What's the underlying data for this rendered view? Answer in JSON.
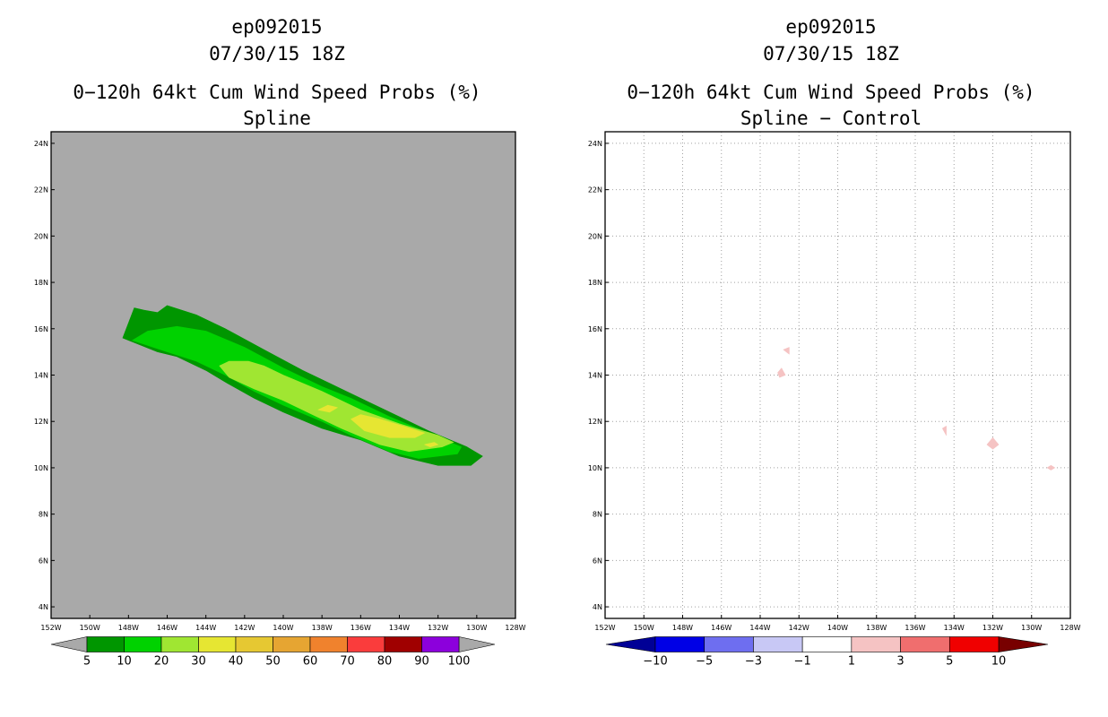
{
  "colors": {
    "map_background_left": "#a9a9a9",
    "map_background_right": "#ffffff",
    "grid": "#a0a0a0"
  },
  "chart_data": [
    {
      "type": "heatmap",
      "title_lines": [
        "ep092015",
        "07/30/15 18Z",
        "0−120h 64kt Cum Wind Speed Probs (%)",
        "Spline"
      ],
      "x_ticks": [
        "152W",
        "150W",
        "148W",
        "146W",
        "144W",
        "142W",
        "140W",
        "138W",
        "136W",
        "134W",
        "132W",
        "130W",
        "128W"
      ],
      "y_ticks": [
        "24N",
        "22N",
        "20N",
        "18N",
        "16N",
        "14N",
        "12N",
        "10N",
        "8N",
        "6N",
        "4N"
      ],
      "xlim": [
        -152,
        -128
      ],
      "ylim": [
        3.5,
        24.5
      ],
      "grid": false,
      "colorbar": {
        "labels": [
          "5",
          "10",
          "20",
          "30",
          "40",
          "50",
          "60",
          "70",
          "80",
          "90",
          "100"
        ],
        "colors": [
          "#009600",
          "#00d200",
          "#a0e632",
          "#e6e632",
          "#e6c832",
          "#e6a532",
          "#f0822d",
          "#fa3c3c",
          "#a00000",
          "#8c00dc"
        ],
        "end_colors": [
          "#a9a9a9",
          "#a9a9a9"
        ]
      },
      "contours": [
        {
          "level": "5-10",
          "color": "#009600",
          "points": [
            [
              -148.3,
              15.6
            ],
            [
              -147.7,
              16.9
            ],
            [
              -147.2,
              16.8
            ],
            [
              -146.5,
              16.7
            ],
            [
              -146.0,
              17.0
            ],
            [
              -144.5,
              16.6
            ],
            [
              -143.0,
              16.0
            ],
            [
              -141.0,
              15.1
            ],
            [
              -139.0,
              14.2
            ],
            [
              -137.5,
              13.6
            ],
            [
              -135.5,
              12.8
            ],
            [
              -134.0,
              12.2
            ],
            [
              -132.5,
              11.6
            ],
            [
              -130.5,
              10.9
            ],
            [
              -129.7,
              10.5
            ],
            [
              -130.3,
              10.1
            ],
            [
              -132.0,
              10.1
            ],
            [
              -134.0,
              10.5
            ],
            [
              -136.0,
              11.2
            ],
            [
              -138.0,
              11.7
            ],
            [
              -140.0,
              12.4
            ],
            [
              -141.5,
              13.0
            ],
            [
              -143.0,
              13.7
            ],
            [
              -144.0,
              14.2
            ],
            [
              -145.5,
              14.8
            ],
            [
              -146.5,
              15.0
            ]
          ]
        },
        {
          "level": "10-20",
          "color": "#00d200",
          "points": [
            [
              -147.8,
              15.5
            ],
            [
              -147.0,
              15.9
            ],
            [
              -145.5,
              16.1
            ],
            [
              -144.0,
              15.9
            ],
            [
              -142.0,
              15.2
            ],
            [
              -140.0,
              14.3
            ],
            [
              -138.0,
              13.5
            ],
            [
              -136.5,
              13.0
            ],
            [
              -134.5,
              12.2
            ],
            [
              -132.5,
              11.5
            ],
            [
              -130.8,
              10.9
            ],
            [
              -131.0,
              10.6
            ],
            [
              -133.0,
              10.4
            ],
            [
              -134.5,
              10.7
            ],
            [
              -136.5,
              11.4
            ],
            [
              -138.0,
              12.0
            ],
            [
              -140.0,
              12.7
            ],
            [
              -141.5,
              13.3
            ],
            [
              -143.0,
              14.0
            ],
            [
              -144.5,
              14.6
            ],
            [
              -146.0,
              15.0
            ]
          ]
        },
        {
          "level": "20-30",
          "color": "#a0e632",
          "points": [
            [
              -143.3,
              14.4
            ],
            [
              -142.8,
              14.6
            ],
            [
              -141.8,
              14.6
            ],
            [
              -141.0,
              14.4
            ],
            [
              -140.0,
              14.0
            ],
            [
              -138.0,
              13.3
            ],
            [
              -136.0,
              12.5
            ],
            [
              -134.0,
              11.9
            ],
            [
              -132.0,
              11.4
            ],
            [
              -131.2,
              11.1
            ],
            [
              -131.8,
              10.9
            ],
            [
              -133.5,
              10.7
            ],
            [
              -135.0,
              11.0
            ],
            [
              -137.0,
              11.7
            ],
            [
              -138.5,
              12.3
            ],
            [
              -140.0,
              12.9
            ],
            [
              -141.5,
              13.4
            ],
            [
              -142.8,
              13.9
            ]
          ]
        },
        {
          "level": "30-40",
          "color": "#e6e632",
          "points": [
            [
              -136.5,
              12.1
            ],
            [
              -136.0,
              12.3
            ],
            [
              -135.0,
              12.1
            ],
            [
              -133.8,
              11.8
            ],
            [
              -132.7,
              11.5
            ],
            [
              -133.2,
              11.3
            ],
            [
              -134.5,
              11.3
            ],
            [
              -135.8,
              11.6
            ]
          ]
        },
        {
          "level": "30-40",
          "color": "#e6e632",
          "points": [
            [
              -138.2,
              12.5
            ],
            [
              -137.7,
              12.7
            ],
            [
              -137.2,
              12.6
            ],
            [
              -137.6,
              12.4
            ]
          ]
        },
        {
          "level": "30-40",
          "color": "#e6e632",
          "points": [
            [
              -132.7,
              11.0
            ],
            [
              -132.2,
              11.1
            ],
            [
              -132.0,
              11.0
            ],
            [
              -132.4,
              10.9
            ]
          ]
        }
      ]
    },
    {
      "type": "heatmap",
      "title_lines": [
        "ep092015",
        "07/30/15 18Z",
        "0−120h 64kt Cum Wind Speed Probs (%)",
        "Spline − Control"
      ],
      "x_ticks": [
        "152W",
        "150W",
        "148W",
        "146W",
        "144W",
        "142W",
        "140W",
        "138W",
        "136W",
        "134W",
        "132W",
        "130W",
        "128W"
      ],
      "y_ticks": [
        "24N",
        "22N",
        "20N",
        "18N",
        "16N",
        "14N",
        "12N",
        "10N",
        "8N",
        "6N",
        "4N"
      ],
      "xlim": [
        -152,
        -128
      ],
      "ylim": [
        3.5,
        24.5
      ],
      "grid": true,
      "colorbar": {
        "labels": [
          "−10",
          "−5",
          "−3",
          "−1",
          "1",
          "3",
          "5",
          "10"
        ],
        "colors": [
          "#0000e6",
          "#6e6ef0",
          "#c8c8f5",
          "#ffffff",
          "#f5c3c3",
          "#f06e6e",
          "#f00000"
        ],
        "end_colors": [
          "#000096",
          "#780000"
        ]
      },
      "contours": [
        {
          "level": "1-3",
          "color": "#f5c3c3",
          "points": [
            [
              -142.8,
              15.1
            ],
            [
              -142.5,
              15.2
            ],
            [
              -142.5,
              14.9
            ]
          ]
        },
        {
          "level": "1-3",
          "color": "#f5c3c3",
          "points": [
            [
              -143.1,
              14.1
            ],
            [
              -142.9,
              14.3
            ],
            [
              -142.7,
              14.0
            ],
            [
              -143.0,
              13.9
            ]
          ]
        },
        {
          "level": "1-3",
          "color": "#f5c3c3",
          "points": [
            [
              -134.6,
              11.7
            ],
            [
              -134.4,
              11.8
            ],
            [
              -134.4,
              11.4
            ]
          ]
        },
        {
          "level": "1-3",
          "color": "#f5c3c3",
          "points": [
            [
              -132.3,
              11.0
            ],
            [
              -132.0,
              11.3
            ],
            [
              -131.7,
              11.0
            ],
            [
              -132.0,
              10.8
            ]
          ]
        },
        {
          "level": "1-3",
          "color": "#f5c3c3",
          "points": [
            [
              -129.2,
              10.0
            ],
            [
              -129.0,
              10.1
            ],
            [
              -128.8,
              10.0
            ],
            [
              -129.0,
              9.9
            ]
          ]
        }
      ]
    }
  ]
}
